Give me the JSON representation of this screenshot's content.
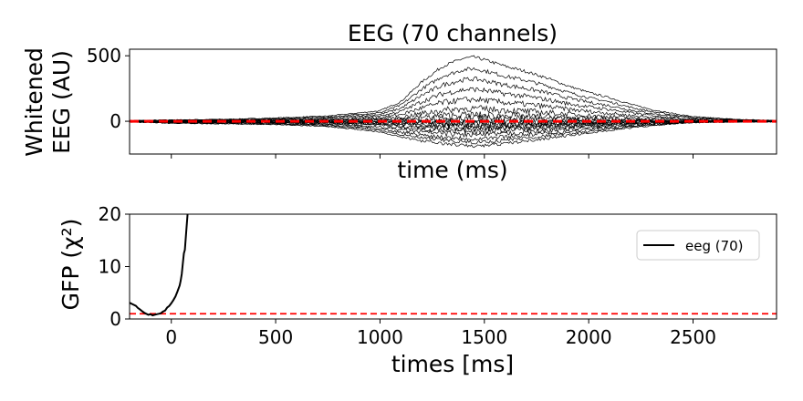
{
  "chart_data": [
    {
      "type": "line",
      "title": "EEG (70 channels)",
      "xlabel": "time (ms)",
      "ylabel_lines": [
        "Whitened",
        "EEG (AU)"
      ],
      "xlim": [
        -200,
        2900
      ],
      "ylim": [
        -250,
        550
      ],
      "yticks": [
        0,
        500
      ],
      "ytick_labels": [
        "0",
        "500"
      ],
      "xticks": [
        0,
        500,
        1000,
        1500,
        2000,
        2500
      ],
      "xtick_labels_shown": false,
      "reference_line": {
        "y": 0,
        "color": "#ff0000",
        "style": "dashed"
      },
      "trace_color": "#000000",
      "channel_count": 70,
      "envelope": {
        "note": "approximate upper and lower extent of the 70 whitened channel traces",
        "x": [
          -200,
          0,
          250,
          500,
          750,
          1000,
          1100,
          1200,
          1300,
          1400,
          1450,
          1500,
          1600,
          1700,
          1800,
          1900,
          2000,
          2100,
          2200,
          2300,
          2400,
          2500,
          2600,
          2700,
          2800,
          2900
        ],
        "upper": [
          5,
          10,
          15,
          25,
          40,
          80,
          150,
          300,
          420,
          480,
          490,
          470,
          420,
          380,
          330,
          270,
          220,
          180,
          130,
          90,
          60,
          35,
          25,
          15,
          10,
          5
        ],
        "lower": [
          -5,
          -15,
          -20,
          -25,
          -40,
          -80,
          -120,
          -150,
          -170,
          -185,
          -190,
          -185,
          -170,
          -150,
          -130,
          -110,
          -90,
          -70,
          -50,
          -35,
          -20,
          -10,
          -8,
          -5,
          -3,
          -2
        ]
      }
    },
    {
      "type": "line",
      "xlabel": "times [ms]",
      "ylabel": "GFP (χ²)",
      "xlim": [
        -200,
        2900
      ],
      "ylim": [
        0,
        20
      ],
      "xticks": [
        0,
        500,
        1000,
        1500,
        2000,
        2500
      ],
      "xtick_labels": [
        "0",
        "500",
        "1000",
        "1500",
        "2000",
        "2500"
      ],
      "yticks": [
        0,
        10,
        20
      ],
      "ytick_labels": [
        "0",
        "10",
        "20"
      ],
      "legend": {
        "placement": "upper-right",
        "entries": [
          "eeg (70)"
        ]
      },
      "reference_line": {
        "y": 1,
        "color": "#ff0000",
        "style": "dashed"
      },
      "series": [
        {
          "name": "eeg (70)",
          "color": "#000000",
          "x": [
            -200,
            -185,
            -170,
            -160,
            -150,
            -140,
            -130,
            -120,
            -110,
            -100,
            -90,
            -80,
            -70,
            -60,
            -50,
            -40,
            -30,
            -20,
            -10,
            0,
            10,
            20,
            30,
            40,
            45,
            50,
            55,
            60,
            65,
            70,
            75,
            80
          ],
          "y": [
            3.1,
            2.8,
            2.5,
            2.1,
            1.8,
            1.5,
            1.2,
            1.0,
            0.8,
            0.9,
            0.7,
            0.8,
            0.9,
            1.0,
            1.1,
            1.4,
            1.6,
            2.2,
            2.5,
            3.0,
            3.6,
            4.3,
            5.3,
            6.4,
            7.3,
            8.6,
            10.5,
            12.5,
            13.2,
            16.0,
            18.5,
            21.0
          ]
        }
      ]
    }
  ]
}
